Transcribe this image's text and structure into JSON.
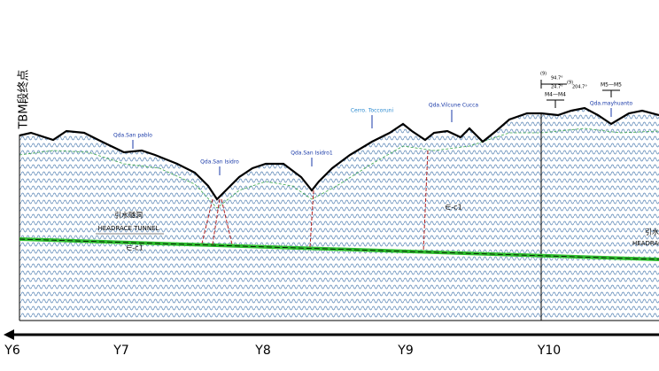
{
  "header": {
    "title": "TBM段终点"
  },
  "places": [
    "Qda.San pablo",
    "Qda.San Isidro",
    "Qda.San Isidro1",
    "Cerro. Toccoruni",
    "Qda.Vilcune Cucca",
    "Qda.mayhuanto"
  ],
  "tunnel": {
    "label_cn": "引水隧洞",
    "label_en": "HEADRACE TUNNEL",
    "right_cn": "引水",
    "right_en": "HEADRACE"
  },
  "strata": [
    "∈-c1",
    "∈-c1"
  ],
  "sections": [
    "M4—M4",
    "M5—M5"
  ],
  "notes": [
    "(9)",
    "94.7°",
    "24.7°",
    "(9)",
    "204.7°"
  ],
  "stations": [
    "Y6",
    "Y7",
    "Y8",
    "Y9",
    "Y10"
  ]
}
